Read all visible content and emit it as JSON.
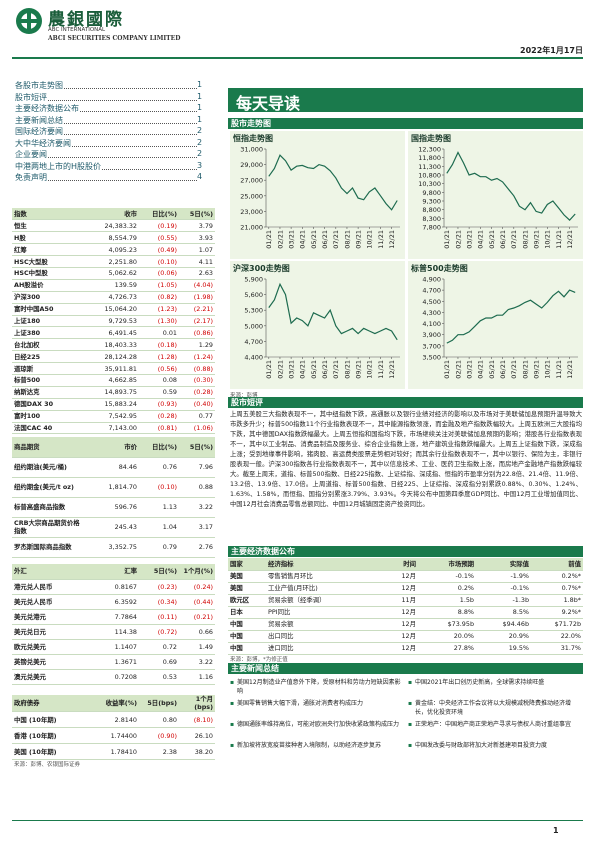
{
  "header": {
    "logo_cn": "農銀國際",
    "logo_en1": "ABC INTERNATIONAL",
    "logo_en2": "ABCI SECURITIES COMPANY LIMITED",
    "date": "2022年1月17日"
  },
  "toc": [
    {
      "label": "各股市走势图",
      "page": "1"
    },
    {
      "label": "股市短评",
      "page": "1"
    },
    {
      "label": "主要经济数据公布",
      "page": "1"
    },
    {
      "label": "主要新闻总结",
      "page": "1"
    },
    {
      "label": "国际经济要闻",
      "page": "2"
    },
    {
      "label": "大中华经济要闻",
      "page": "2"
    },
    {
      "label": "企业要闻",
      "page": "2"
    },
    {
      "label": "中港两地上市的H股股价",
      "page": "3"
    },
    {
      "label": "免责声明",
      "page": "4"
    }
  ],
  "title": "每天导读",
  "sections": {
    "charts": "股市走势图",
    "commentary": "股市短评",
    "econ": "主要经济数据公布",
    "news": "主要新闻总结"
  },
  "chart_source": "来源：彭博",
  "chart_data": [
    {
      "type": "line",
      "title": "恒指走势图",
      "color": "#1d6b4f",
      "categories": [
        "01/21",
        null,
        "02/21",
        null,
        "03/21",
        null,
        "04/21",
        null,
        "05/21",
        null,
        "06/21",
        null,
        "07/21",
        null,
        "08/21",
        null,
        "09/21",
        null,
        "10/21",
        null,
        "11/21",
        null,
        "12/21",
        null
      ],
      "values": [
        27500,
        28500,
        30200,
        29500,
        28300,
        28800,
        28900,
        28600,
        28500,
        29000,
        28800,
        28200,
        27300,
        26000,
        25300,
        26000,
        24700,
        24500,
        25500,
        26000,
        25000,
        24000,
        23200,
        24400
      ],
      "ylim": [
        21000,
        31000
      ],
      "yticks": [
        {
          "value": 21000,
          "label": "21,000"
        },
        {
          "value": 23000,
          "label": "23,000"
        },
        {
          "value": 25000,
          "label": "25,000"
        },
        {
          "value": 27000,
          "label": "27,000"
        },
        {
          "value": 29000,
          "label": "29,000"
        },
        {
          "value": 31000,
          "label": "31,000"
        }
      ]
    },
    {
      "type": "line",
      "title": "国指走势图",
      "color": "#1d6b4f",
      "categories": [
        "01/21",
        null,
        "02/21",
        null,
        "03/21",
        null,
        "04/21",
        null,
        "05/21",
        null,
        "06/21",
        null,
        "07/21",
        null,
        "08/21",
        null,
        "09/21",
        null,
        "10/21",
        null,
        "11/21",
        null,
        "12/21",
        null
      ],
      "values": [
        10900,
        11400,
        12100,
        11500,
        10800,
        10900,
        10700,
        10700,
        10500,
        10600,
        10400,
        10000,
        9600,
        9000,
        8800,
        9200,
        8700,
        8600,
        9100,
        9300,
        8900,
        8500,
        8200,
        8550
      ],
      "ylim": [
        7800,
        12300
      ],
      "yticks": [
        {
          "value": 7800,
          "label": "7,800"
        },
        {
          "value": 8300,
          "label": "8,300"
        },
        {
          "value": 8800,
          "label": "8,800"
        },
        {
          "value": 9300,
          "label": "9,300"
        },
        {
          "value": 9800,
          "label": "9,800"
        },
        {
          "value": 10300,
          "label": "10,300"
        },
        {
          "value": 10800,
          "label": "10,800"
        },
        {
          "value": 11300,
          "label": "11,300"
        },
        {
          "value": 11800,
          "label": "11,800"
        },
        {
          "value": 12300,
          "label": "12,300"
        }
      ]
    },
    {
      "type": "line",
      "title": "沪深300走势图",
      "color": "#1d6b4f",
      "categories": [
        "01/21",
        null,
        "02/21",
        null,
        "03/21",
        null,
        "04/21",
        null,
        "05/21",
        null,
        "06/21",
        null,
        "07/21",
        null,
        "08/21",
        null,
        "09/21",
        null,
        "10/21",
        null,
        "11/21",
        null,
        "12/21",
        null
      ],
      "values": [
        5350,
        5500,
        5800,
        5600,
        5050,
        5150,
        5100,
        5000,
        5250,
        5200,
        5150,
        5300,
        5000,
        4850,
        4900,
        4950,
        4850,
        4950,
        4900,
        4850,
        4900,
        4950,
        4900,
        4730
      ],
      "ylim": [
        4400,
        5900
      ],
      "yticks": [
        {
          "value": 4400,
          "label": "4,400"
        },
        {
          "value": 4700,
          "label": "4,700"
        },
        {
          "value": 5000,
          "label": "5,000"
        },
        {
          "value": 5300,
          "label": "5,300"
        },
        {
          "value": 5600,
          "label": "5,600"
        },
        {
          "value": 5900,
          "label": "5,900"
        }
      ]
    },
    {
      "type": "line",
      "title": "标普500走势图",
      "color": "#1d6b4f",
      "categories": [
        "01/21",
        null,
        "02/21",
        null,
        "03/21",
        null,
        "04/21",
        null,
        "05/21",
        null,
        "06/21",
        null,
        "07/21",
        null,
        "08/21",
        null,
        "09/21",
        null,
        "10/21",
        null,
        "11/21",
        null,
        "12/21",
        null
      ],
      "values": [
        3750,
        3800,
        3900,
        3900,
        3950,
        4050,
        4150,
        4200,
        4200,
        4250,
        4250,
        4350,
        4380,
        4420,
        4480,
        4520,
        4450,
        4380,
        4480,
        4600,
        4680,
        4580,
        4700,
        4660
      ],
      "ylim": [
        3500,
        4900
      ],
      "yticks": [
        {
          "value": 3500,
          "label": "3,500"
        },
        {
          "value": 3700,
          "label": "3,700"
        },
        {
          "value": 3900,
          "label": "3,900"
        },
        {
          "value": 4100,
          "label": "4,100"
        },
        {
          "value": 4300,
          "label": "4,300"
        },
        {
          "value": 4500,
          "label": "4,500"
        },
        {
          "value": 4700,
          "label": "4,700"
        },
        {
          "value": 4900,
          "label": "4,900"
        }
      ]
    }
  ],
  "commentary": "上周五美股三大指数表现不一，其中纽指数下跌，高通胀以及银行业绩对经济的影响以及市场对于美联储加息预期升温导致大市跌多升少；标普500指数11个行业指数表现不一，其中能源指数领涨，而金融及地产指数跌幅较大。上周五欧洲三大股指均下跌，其中德国DAX指数跌幅最大。上周五恒指和国指均下跌，市场继续关注对美联储加息预期的影响；港股各行业指数表现不一，其中以工业制品、消费品制造及服务业、综合企业指数上涨，地产建筑业指数跌幅最大。上周五上证指数下跌，深成指上涨；受到地缘事件影响，猪肉股、高运费类股票走势相对较好；而其余行业指数表现不一，其中以银行、保险为主，非银行股表现一般。沪深300指数各行业指数表现不一，其中以信息技术、工业、医药卫生指数上涨，而房地产金融地产指数跌幅较大。截至上周末，道指、标普500指数、日经225指数、上证综指、深成指、恒指的市盈率分别为22.8倍、21.4倍、11.9倍、13.2倍、13.9倍、17.0倍。上周道指、标普500指数、日经225、上证综指、深成指分别累跌0.88%、0.30%、1.24%、1.63%、1.58%，而恒指、国指分别累涨3.79%、3.93%。今天将公布中国第四季度GDP同比、中国12月工业增加值同比、中国12月社会消费品零售总额同比、中国12月城镇固定资产投资同比。",
  "tables": {
    "indices": {
      "header": [
        "指数",
        "收市",
        "日比(%)",
        "5日(%)"
      ],
      "rows": [
        [
          "恒生",
          "24,383.32",
          "(0.19)",
          "3.79"
        ],
        [
          "H股",
          "8,554.79",
          "(0.55)",
          "3.93"
        ],
        [
          "红筹",
          "4,095.23",
          "(0.49)",
          "1.07"
        ],
        [
          "HSC大型股",
          "2,251.80",
          "(0.10)",
          "4.11"
        ],
        [
          "HSC中型股",
          "5,062.62",
          "(0.06)",
          "2.63"
        ],
        [
          "AH股溢价",
          "139.59",
          "(1.05)",
          "(4.04)"
        ],
        [
          "沪深300",
          "4,726.73",
          "(0.82)",
          "(1.98)"
        ],
        [
          "富时中国A50",
          "15,064.20",
          "(1.23)",
          "(2.21)"
        ],
        [
          "上证180",
          "9,729.53",
          "(1.30)",
          "(2.17)"
        ],
        [
          "上证380",
          "6,491.45",
          "0.01",
          "(0.86)"
        ],
        [
          "台北加权",
          "18,403.33",
          "(0.18)",
          "1.29"
        ],
        [
          "日经225",
          "28,124.28",
          "(1.28)",
          "(1.24)"
        ],
        [
          "道琼斯",
          "35,911.81",
          "(0.56)",
          "(0.88)"
        ],
        [
          "标普500",
          "4,662.85",
          "0.08",
          "(0.30)"
        ],
        [
          "纳斯达克",
          "14,893.75",
          "0.59",
          "(0.28)"
        ],
        [
          "德国DAX 30",
          "15,883.24",
          "(0.93)",
          "(0.40)"
        ],
        [
          "富时100",
          "7,542.95",
          "(0.28)",
          "0.77"
        ],
        [
          "法国CAC 40",
          "7,143.00",
          "(0.81)",
          "(1.06)"
        ]
      ]
    },
    "commodities": {
      "header": [
        "商品期货",
        "市价",
        "日比(%)",
        "5日(%)"
      ],
      "rows": [
        [
          "纽约期油(美元/桶)",
          "84.46",
          "0.76",
          "7.96"
        ],
        [
          "纽约期金(美元/t oz)",
          "1,814.70",
          "(0.10)",
          "0.88"
        ],
        [
          "标普高盛商品指数",
          "596.76",
          "1.13",
          "3.22"
        ],
        [
          "CRB大宗商品期货价格指数",
          "245.43",
          "1.04",
          "3.17"
        ],
        [
          "罗杰斯国际商品指数",
          "3,352.75",
          "0.79",
          "2.76"
        ]
      ]
    },
    "forex": {
      "header": [
        "外汇",
        "汇率",
        "5日(%)",
        "1个月(%)"
      ],
      "rows": [
        [
          "港元兑人民币",
          "0.8167",
          "(0.23)",
          "(0.24)"
        ],
        [
          "美元兑人民币",
          "6.3592",
          "(0.34)",
          "(0.44)"
        ],
        [
          "美元兑港元",
          "7.7864",
          "(0.11)",
          "(0.21)"
        ],
        [
          "美元兑日元",
          "114.38",
          "(0.72)",
          "0.66"
        ],
        [
          "欧元兑美元",
          "1.1407",
          "0.72",
          "1.49"
        ],
        [
          "英镑兑美元",
          "1.3671",
          "0.69",
          "3.22"
        ],
        [
          "澳元兑美元",
          "0.7208",
          "0.53",
          "1.16"
        ]
      ]
    },
    "bonds": {
      "header": [
        "政府债券",
        "收益率(%)",
        "5日(bps)",
        "1个月(bps)"
      ],
      "rows": [
        [
          "中国 (10年期)",
          "2.8140",
          "0.80",
          "(8.10)"
        ],
        [
          "香港 (10年期)",
          "1.74400",
          "(0.90)",
          "26.10"
        ],
        [
          "美国 (10年期)",
          "1.78410",
          "2.38",
          "38.20"
        ]
      ]
    },
    "econ": {
      "header": [
        "国家",
        "经济指标",
        "时间",
        "市场预期",
        "实际值",
        "前值"
      ],
      "rows": [
        [
          "美国",
          "零售销售月环比",
          "12月",
          "-0.1%",
          "-1.9%",
          "0.2%*"
        ],
        [
          "美国",
          "工业产值(月环比)",
          "12月",
          "0.2%",
          "-0.1%",
          "0.7%*"
        ],
        [
          "欧元区",
          "贸易余额（经季调）",
          "11月",
          "1.5b",
          "-1.3b",
          "1.8b*"
        ],
        [
          "日本",
          "PPI同比",
          "12月",
          "8.8%",
          "8.5%",
          "9.2%*"
        ],
        [
          "中国",
          "贸易余额",
          "12月",
          "$73.95b",
          "$94.46b",
          "$71.72b"
        ],
        [
          "中国",
          "出口同比",
          "12月",
          "20.0%",
          "20.9%",
          "22.0%"
        ],
        [
          "中国",
          "进口同比",
          "12月",
          "27.8%",
          "19.5%",
          "31.7%"
        ]
      ]
    }
  },
  "left_source": "来源：彭博、农银国际证券",
  "econ_source": "来源：彭博，*为修正值",
  "news": {
    "left": [
      "美国12月制造业产值意外下降，受原材料和劳动力短缺因素影响",
      "美国零售销售大幅下滑，通胀对消费者构成压力",
      "德国通胀率维持高位，可能对欧洲央行加快收紧政策构成压力",
      "新加坡将放宽疫苗接种者入境限制，以助经济逐步复苏"
    ],
    "right": [
      "中国2021年出口创历史新高，全球需求持续旺盛",
      "黄金结：中央经济工作会议将以大规模减税降费推动经济增长，优化投资环境",
      "正荣地产：中国地产商正荣地产寻求与债权人商讨重组事宜",
      "中国发改委与财政部将加大对新基建项目投资力度"
    ]
  },
  "page_number": "1"
}
